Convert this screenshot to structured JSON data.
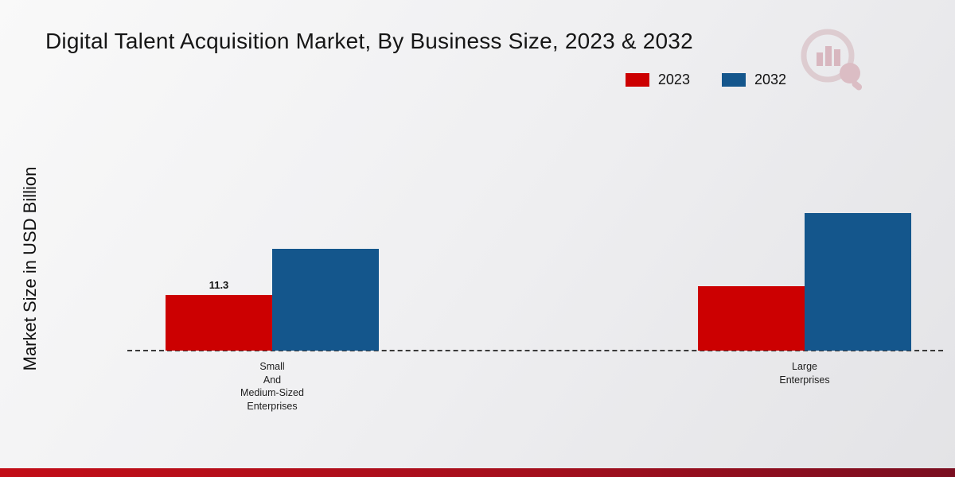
{
  "title": "Digital Talent Acquisition Market, By Business Size, 2023 & 2032",
  "y_axis_label": "Market Size in USD Billion",
  "legend": {
    "items": [
      {
        "label": "2023",
        "color": "#cc0001"
      },
      {
        "label": "2032",
        "color": "#14568c"
      }
    ]
  },
  "accent": {
    "bottom_bar_color": "#a50f1d",
    "background_color": "#ededef"
  },
  "chart_data": {
    "type": "bar",
    "title": "Digital Talent Acquisition Market, By Business Size, 2023 & 2032",
    "xlabel": "",
    "ylabel": "Market Size in USD Billion",
    "categories": [
      "Small And Medium-Sized Enterprises",
      "Large Enterprises"
    ],
    "category_label_lines": [
      [
        "Small",
        "And",
        "Medium-Sized",
        "Enterprises"
      ],
      [
        "Large",
        "Enterprises"
      ]
    ],
    "series": [
      {
        "name": "2023",
        "color": "#cc0001",
        "values": [
          11.3,
          13.1
        ],
        "data_labels": [
          "11.3",
          ""
        ]
      },
      {
        "name": "2032",
        "color": "#14568c",
        "values": [
          20.7,
          27.9
        ],
        "data_labels": [
          "",
          ""
        ]
      }
    ],
    "ylim": [
      0,
      30
    ],
    "grid": false,
    "baseline_style": "dashed",
    "legend_position": "top-right"
  }
}
